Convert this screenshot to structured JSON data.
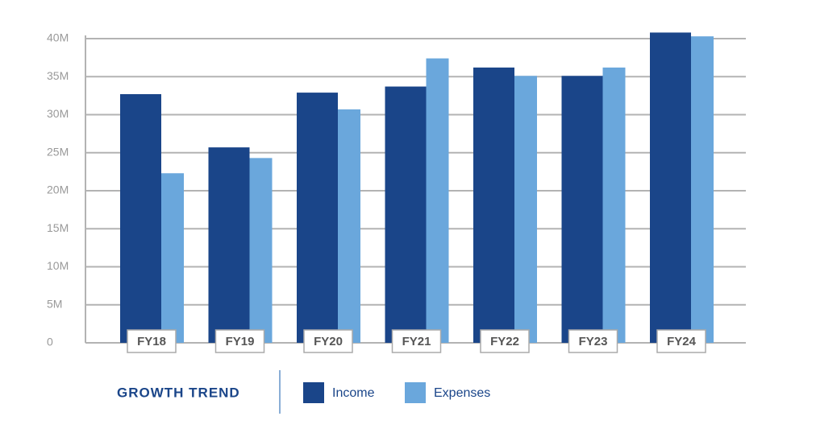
{
  "chart_data": {
    "type": "bar",
    "legend_title": "GROWTH TREND",
    "categories": [
      "FY18",
      "FY19",
      "FY20",
      "FY21",
      "FY22",
      "FY23",
      "FY24"
    ],
    "series": [
      {
        "name": "Income",
        "color": "#1a4589",
        "values": [
          32.7,
          25.7,
          32.9,
          33.7,
          36.2,
          35.1,
          40.8
        ]
      },
      {
        "name": "Expenses",
        "color": "#6aa7dc",
        "values": [
          22.3,
          24.3,
          30.7,
          37.4,
          35.1,
          36.2,
          40.3
        ]
      }
    ],
    "ylim": [
      0,
      40
    ],
    "yticks": [
      0,
      {
        "value": 5,
        "label": "5M"
      },
      {
        "value": 10,
        "label": "10M"
      },
      {
        "value": 15,
        "label": "15M"
      },
      {
        "value": 20,
        "label": "20M"
      },
      {
        "value": 25,
        "label": "25M"
      },
      {
        "value": 30,
        "label": "30M"
      },
      {
        "value": 35,
        "label": "35M"
      },
      {
        "value": 40,
        "label": "40M"
      }
    ],
    "grid": true
  }
}
